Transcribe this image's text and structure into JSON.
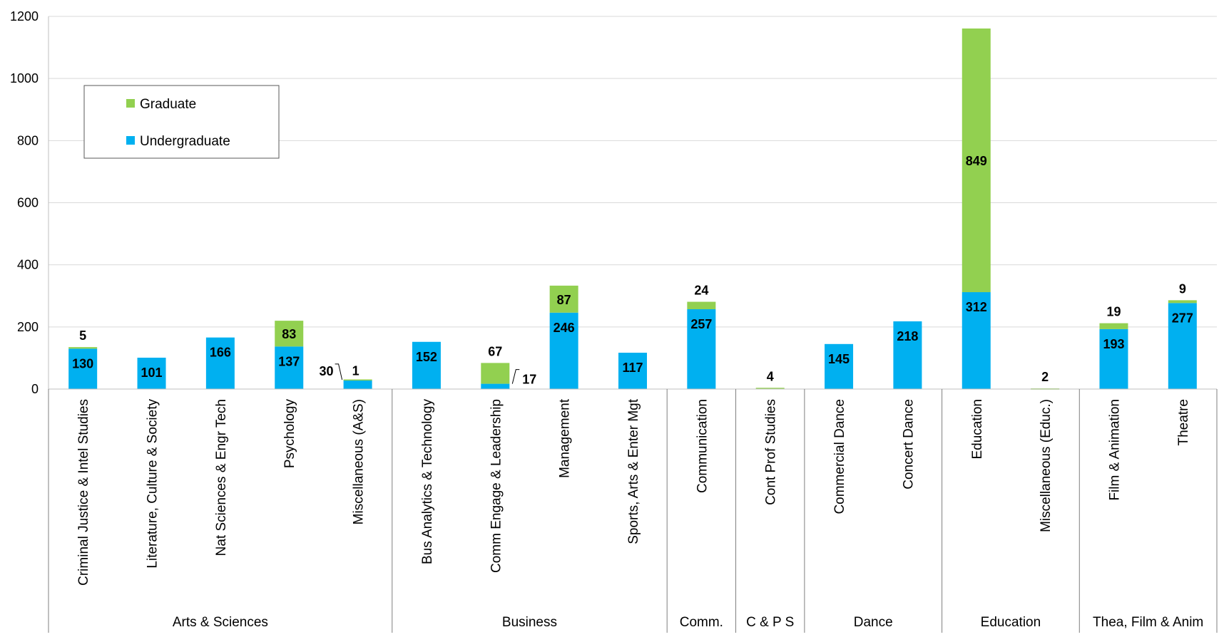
{
  "chart_data": {
    "type": "bar",
    "stacked": true,
    "ylim": [
      0,
      1200
    ],
    "yticks": [
      0,
      200,
      400,
      600,
      800,
      1000,
      1200
    ],
    "grid": true,
    "legend_position": "top-left",
    "categories": [
      "Criminal Justice & Intel Studies",
      "Literature, Culture & Society",
      "Nat Sciences & Engr Tech",
      "Psychology",
      "Miscellaneous (A&S)",
      "Bus Analytics & Technology",
      "Comm Engage & Leadership",
      "Management",
      "Sports, Arts & Enter Mgt",
      "Communication",
      "Cont Prof Studies",
      "Commercial Dance",
      "Concert Dance",
      "Education",
      "Miscellaneous (Educ.)",
      "Film & Animation",
      "Theatre"
    ],
    "groups": [
      {
        "label": "Arts & Sciences",
        "count": 5
      },
      {
        "label": "Business",
        "count": 4
      },
      {
        "label": "Comm.",
        "count": 1
      },
      {
        "label": "C & P S",
        "count": 1
      },
      {
        "label": "Dance",
        "count": 2
      },
      {
        "label": "Education",
        "count": 2
      },
      {
        "label": "Thea, Film & Anim",
        "count": 2
      }
    ],
    "series": [
      {
        "name": "Undergraduate",
        "color": "#00B0F0",
        "values": [
          130,
          101,
          166,
          137,
          30,
          152,
          17,
          246,
          117,
          257,
          0,
          145,
          218,
          312,
          0,
          193,
          277
        ]
      },
      {
        "name": "Graduate",
        "color": "#92D050",
        "values": [
          5,
          0,
          0,
          83,
          1,
          0,
          67,
          87,
          0,
          24,
          4,
          0,
          0,
          849,
          2,
          19,
          9
        ]
      }
    ],
    "legend_order": [
      "Graduate",
      "Undergraduate"
    ]
  }
}
